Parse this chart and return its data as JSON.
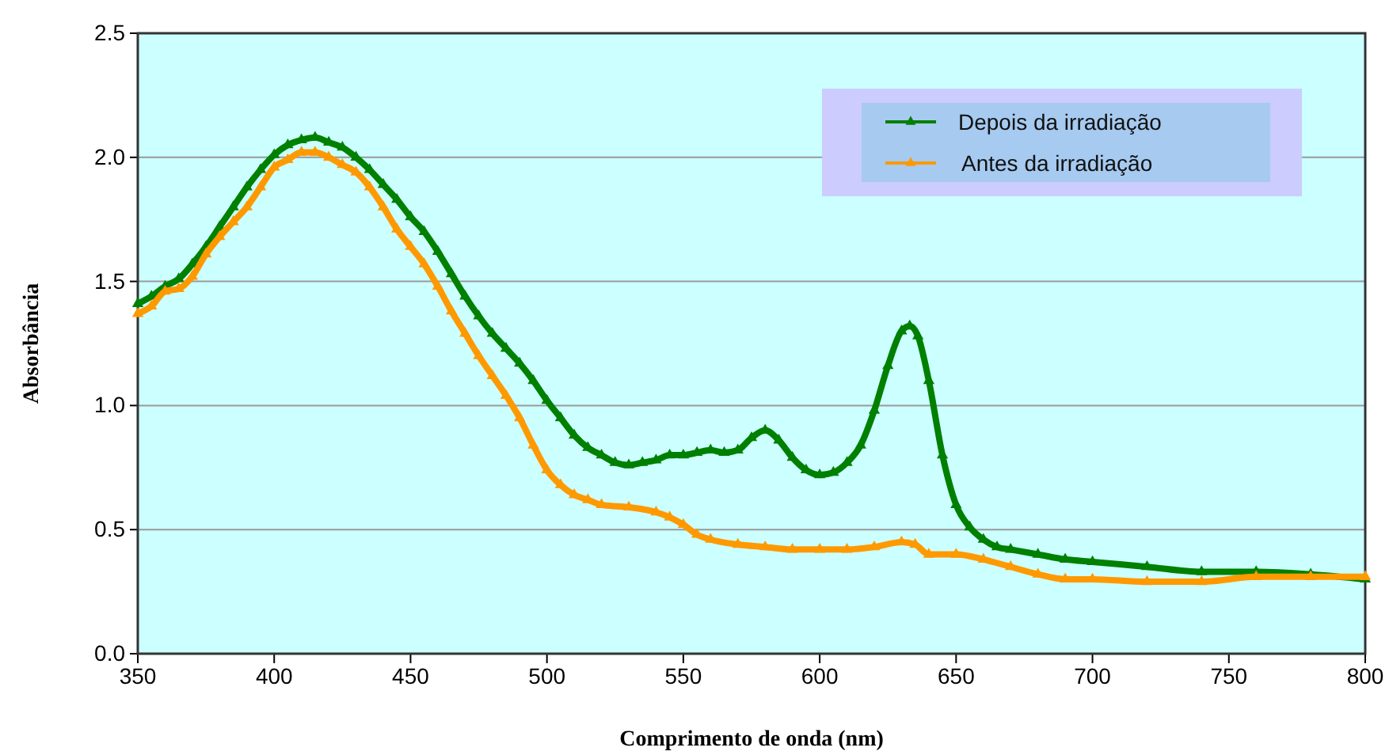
{
  "chart_data": {
    "type": "line",
    "xlabel": "Comprimento de onda (nm)",
    "ylabel": "Absorbância",
    "xlim": [
      350,
      800
    ],
    "xticks": [
      350,
      400,
      450,
      500,
      550,
      600,
      650,
      700,
      750,
      800
    ],
    "ylim": [
      0,
      2.5
    ],
    "yticks": [
      {
        "value": 0,
        "label": "0.0"
      },
      {
        "value": 0.5,
        "label": "0.5"
      },
      {
        "value": 1,
        "label": "1.0"
      },
      {
        "value": 1.5,
        "label": "1.5"
      },
      {
        "value": 2,
        "label": "2.0"
      },
      {
        "value": 2.5,
        "label": "2.5"
      }
    ],
    "grid": "y",
    "legend": "top right",
    "marker": "triangle",
    "line_style": "solid",
    "series": [
      {
        "name": "Depois da irradiação",
        "color": "#008000",
        "x": [
          350,
          355,
          360,
          365,
          370,
          375,
          380,
          385,
          390,
          395,
          400,
          405,
          410,
          415,
          420,
          425,
          430,
          435,
          440,
          445,
          450,
          455,
          460,
          465,
          470,
          475,
          480,
          485,
          490,
          495,
          500,
          505,
          510,
          515,
          520,
          525,
          530,
          535,
          540,
          545,
          550,
          555,
          560,
          565,
          570,
          575,
          580,
          585,
          590,
          595,
          600,
          605,
          610,
          615,
          620,
          625,
          630,
          633,
          636,
          640,
          645,
          650,
          655,
          660,
          665,
          670,
          680,
          690,
          700,
          720,
          740,
          760,
          780,
          800
        ],
        "values": [
          1.41,
          1.44,
          1.48,
          1.51,
          1.57,
          1.64,
          1.72,
          1.8,
          1.88,
          1.95,
          2.01,
          2.05,
          2.07,
          2.08,
          2.06,
          2.04,
          2.0,
          1.95,
          1.89,
          1.83,
          1.76,
          1.7,
          1.62,
          1.53,
          1.44,
          1.36,
          1.29,
          1.23,
          1.17,
          1.1,
          1.02,
          0.95,
          0.88,
          0.83,
          0.8,
          0.77,
          0.76,
          0.77,
          0.78,
          0.8,
          0.8,
          0.81,
          0.82,
          0.81,
          0.82,
          0.87,
          0.9,
          0.86,
          0.79,
          0.74,
          0.72,
          0.73,
          0.77,
          0.84,
          0.98,
          1.16,
          1.3,
          1.32,
          1.28,
          1.1,
          0.8,
          0.6,
          0.51,
          0.46,
          0.43,
          0.42,
          0.4,
          0.38,
          0.37,
          0.35,
          0.33,
          0.33,
          0.32,
          0.3
        ]
      },
      {
        "name": "Antes da irradiação",
        "color": "#ff9900",
        "x": [
          350,
          355,
          360,
          365,
          370,
          375,
          380,
          385,
          390,
          395,
          400,
          405,
          410,
          415,
          420,
          425,
          430,
          435,
          440,
          445,
          450,
          455,
          460,
          465,
          470,
          475,
          480,
          485,
          490,
          495,
          500,
          505,
          510,
          515,
          520,
          530,
          540,
          545,
          550,
          555,
          560,
          570,
          580,
          590,
          600,
          610,
          620,
          630,
          635,
          640,
          650,
          660,
          670,
          680,
          690,
          700,
          720,
          740,
          760,
          780,
          800
        ],
        "values": [
          1.37,
          1.4,
          1.46,
          1.47,
          1.52,
          1.61,
          1.68,
          1.74,
          1.8,
          1.88,
          1.96,
          1.99,
          2.02,
          2.02,
          2.0,
          1.97,
          1.94,
          1.88,
          1.8,
          1.71,
          1.64,
          1.57,
          1.48,
          1.38,
          1.29,
          1.2,
          1.12,
          1.04,
          0.95,
          0.84,
          0.74,
          0.68,
          0.64,
          0.62,
          0.6,
          0.59,
          0.57,
          0.55,
          0.52,
          0.48,
          0.46,
          0.44,
          0.43,
          0.42,
          0.42,
          0.42,
          0.43,
          0.45,
          0.44,
          0.4,
          0.4,
          0.38,
          0.35,
          0.32,
          0.3,
          0.3,
          0.29,
          0.29,
          0.31,
          0.31,
          0.31
        ]
      }
    ]
  }
}
